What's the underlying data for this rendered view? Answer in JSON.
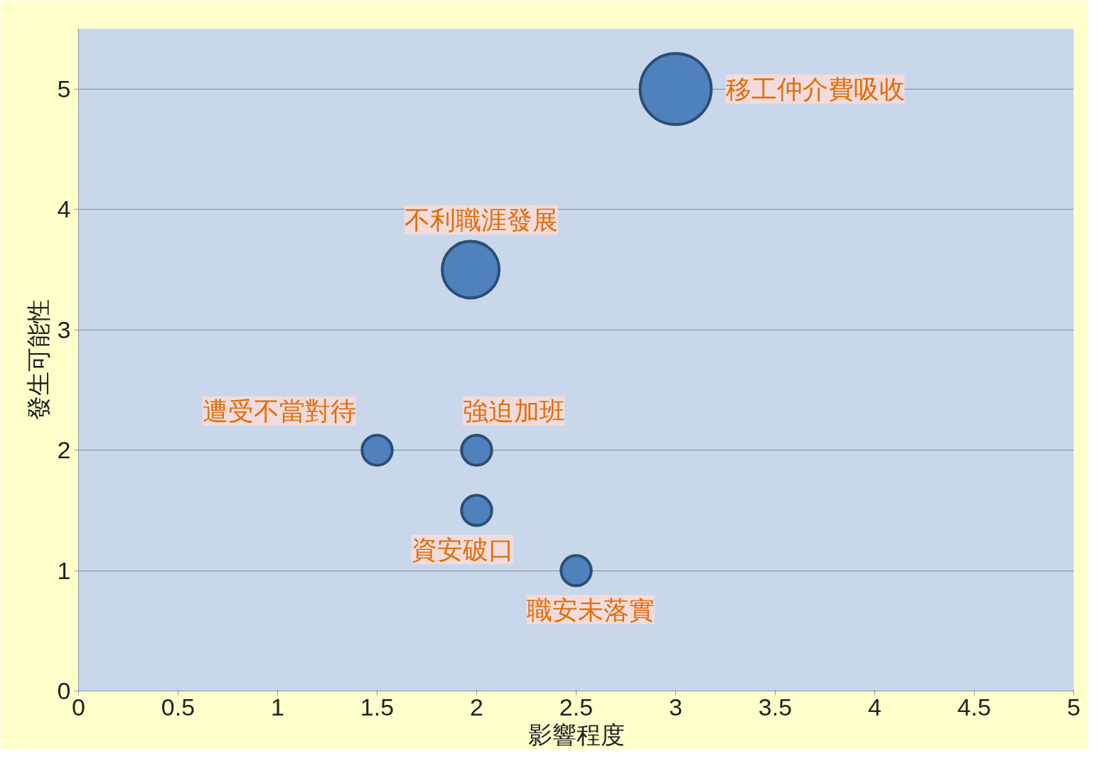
{
  "chart_data": {
    "type": "bubble",
    "xlabel": "影響程度",
    "ylabel": "發生可能性",
    "x": [
      3,
      1.97,
      1.5,
      2,
      2,
      2.5
    ],
    "values": [
      5,
      3.5,
      2,
      2,
      1.5,
      1
    ],
    "sizes": [
      1,
      0.64,
      0.18,
      0.18,
      0.18,
      0.18
    ],
    "color": "#4f81bd",
    "xlim": [
      0,
      5
    ],
    "ylim": [
      0,
      5.5
    ],
    "xticks": [
      0,
      0.5,
      1,
      1.5,
      2,
      2.5,
      3,
      3.5,
      4,
      4.5,
      5
    ],
    "yticks": [
      0,
      1,
      2,
      3,
      4,
      5
    ],
    "grid": "y",
    "annotations": [
      {
        "text": "移工仲介費吸收",
        "x": 3,
        "y": 5
      },
      {
        "text": "不利職涯發展",
        "x": 1.97,
        "y": 3.5
      },
      {
        "text": "遭受不當對待",
        "x": 1.5,
        "y": 2
      },
      {
        "text": "強迫加班",
        "x": 2,
        "y": 2
      },
      {
        "text": "資安破口",
        "x": 2,
        "y": 1.5
      },
      {
        "text": "職安未落實",
        "x": 2.5,
        "y": 1
      }
    ]
  }
}
